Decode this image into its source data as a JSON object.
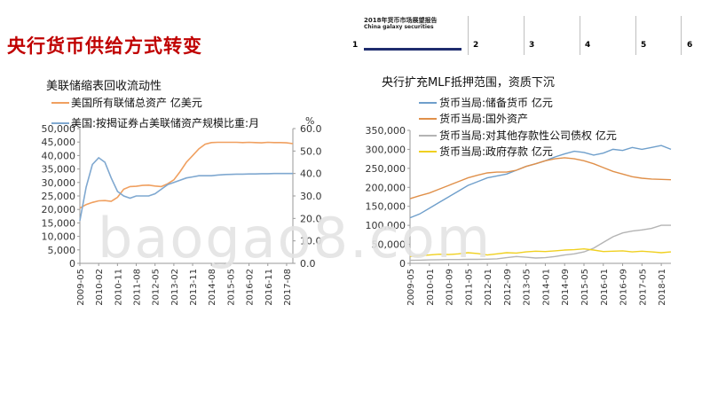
{
  "slide": {
    "title": "央行货币供给方式转变",
    "header": {
      "line1": "2018年货币市场展望报告",
      "line2": "China galaxy securities",
      "nav": [
        "1",
        "2",
        "3",
        "4",
        "5",
        "6"
      ]
    },
    "watermark": "baogao8.com"
  },
  "left_chart_title": "美联储缩表回收流动性",
  "right_chart_title": "央行扩充MLF抵押范围，资质下沉",
  "chart_data": [
    {
      "type": "line",
      "title": "美联储缩表回收流动性",
      "x": [
        "2009-05",
        "2009-08",
        "2009-11",
        "2010-02",
        "2010-05",
        "2010-08",
        "2010-11",
        "2011-02",
        "2011-05",
        "2011-08",
        "2011-11",
        "2012-02",
        "2012-05",
        "2012-08",
        "2012-11",
        "2013-02",
        "2013-05",
        "2013-08",
        "2013-11",
        "2014-02",
        "2014-05",
        "2014-08",
        "2014-11",
        "2015-02",
        "2015-05",
        "2015-08",
        "2015-11",
        "2016-02",
        "2016-05",
        "2016-08",
        "2016-11",
        "2017-02",
        "2017-05",
        "2017-08",
        "2017-11"
      ],
      "x_tick_labels": [
        "2009-05",
        "2010-02",
        "2010-11",
        "2011-08",
        "2012-05",
        "2013-02",
        "2013-11",
        "2014-08",
        "2015-05",
        "2016-02",
        "2016-11",
        "2017-08"
      ],
      "ylim_left": [
        0,
        50000
      ],
      "ylim_right": [
        0,
        60
      ],
      "yticks_left": [
        "0",
        "5,000",
        "10,000",
        "15,000",
        "20,000",
        "25,000",
        "30,000",
        "35,000",
        "40,000",
        "45,000",
        "50,000"
      ],
      "yticks_right": [
        "0.0",
        "10.0",
        "20.0",
        "30.0",
        "40.0",
        "50.0",
        "60.0"
      ],
      "ylabel_right": "%",
      "series": [
        {
          "name": "美国所有联储总资产  亿美元",
          "axis": "left",
          "color": "#f0a060",
          "values": [
            20500,
            21800,
            22600,
            23200,
            23300,
            23000,
            24500,
            27500,
            28500,
            28600,
            28900,
            29000,
            28700,
            28500,
            29500,
            31000,
            34000,
            37500,
            40000,
            42500,
            44200,
            44800,
            44900,
            44900,
            44900,
            44900,
            44800,
            44900,
            44800,
            44700,
            44900,
            44800,
            44800,
            44700,
            44400
          ]
        },
        {
          "name": "美国:按揭证券占美联储资产规模比重:月",
          "axis": "right",
          "color": "#7fa8d0",
          "values": [
            19,
            34,
            44,
            47,
            45,
            38,
            32,
            30,
            29,
            30,
            30,
            30,
            31,
            33,
            35,
            36,
            37,
            38,
            38.5,
            39,
            39,
            39,
            39.3,
            39.5,
            39.6,
            39.7,
            39.7,
            39.8,
            39.8,
            39.9,
            39.9,
            40,
            40,
            40,
            40
          ]
        }
      ]
    },
    {
      "type": "line",
      "title": "央行扩充MLF抵押范围，资质下沉",
      "x": [
        "2009-05",
        "2009-09",
        "2010-01",
        "2010-05",
        "2010-09",
        "2011-01",
        "2011-05",
        "2011-09",
        "2012-01",
        "2012-05",
        "2012-09",
        "2013-01",
        "2013-05",
        "2013-09",
        "2014-01",
        "2014-05",
        "2014-09",
        "2015-01",
        "2015-05",
        "2015-09",
        "2016-01",
        "2016-05",
        "2016-09",
        "2017-01",
        "2017-05",
        "2017-09",
        "2018-01",
        "2018-05"
      ],
      "x_tick_labels": [
        "2009-05",
        "2010-01",
        "2010-09",
        "2011-05",
        "2012-01",
        "2012-09",
        "2013-05",
        "2014-01",
        "2014-09",
        "2015-05",
        "2016-01",
        "2016-09",
        "2017-05",
        "2018-01"
      ],
      "ylim": [
        0,
        350000
      ],
      "yticks": [
        "0",
        "50,000",
        "100,000",
        "150,000",
        "200,000",
        "250,000",
        "300,000",
        "350,000"
      ],
      "series": [
        {
          "name": "货币当局:储备货币  亿元",
          "color": "#6f9fcb",
          "values": [
            120000,
            130000,
            145000,
            160000,
            175000,
            190000,
            205000,
            215000,
            225000,
            230000,
            235000,
            245000,
            255000,
            262000,
            270000,
            280000,
            288000,
            295000,
            292000,
            285000,
            290000,
            300000,
            297000,
            305000,
            300000,
            305000,
            310000,
            300000
          ]
        },
        {
          "name": "货币当局:国外资产",
          "color": "#e0904a",
          "values": [
            170000,
            178000,
            185000,
            195000,
            205000,
            215000,
            225000,
            232000,
            238000,
            240000,
            240000,
            245000,
            255000,
            262000,
            270000,
            275000,
            278000,
            275000,
            270000,
            262000,
            252000,
            242000,
            235000,
            228000,
            224000,
            222000,
            221000,
            220000
          ]
        },
        {
          "name": "货币当局:对其他存款性公司债权  亿元",
          "color": "#b4b4b4",
          "values": [
            8000,
            8500,
            9000,
            9500,
            10000,
            10000,
            10500,
            10500,
            11000,
            12000,
            15000,
            18000,
            16000,
            14000,
            15000,
            18000,
            22000,
            25000,
            30000,
            40000,
            55000,
            70000,
            80000,
            85000,
            88000,
            92000,
            100000,
            100000
          ]
        },
        {
          "name": "货币当局:政府存款  亿元",
          "color": "#f0d020",
          "values": [
            18000,
            20000,
            22000,
            24000,
            23000,
            25000,
            28000,
            26000,
            22000,
            25000,
            28000,
            27000,
            30000,
            32000,
            31000,
            33000,
            35000,
            36000,
            38000,
            35000,
            31000,
            32000,
            33000,
            30000,
            32000,
            30000,
            28000,
            30000
          ]
        }
      ]
    }
  ]
}
